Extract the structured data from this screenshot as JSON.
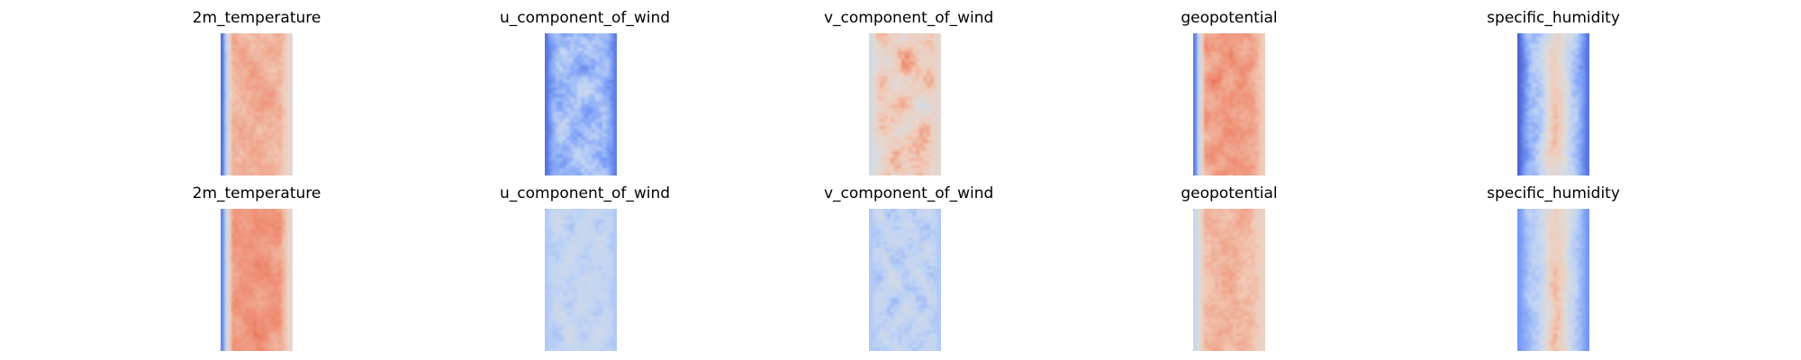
{
  "colormap": "coolwarm",
  "colormap_stops": [
    "#3b4cc0",
    "#7b9ff9",
    "#c0d4f5",
    "#dddcdc",
    "#f2cbb7",
    "#ee8468",
    "#b40426"
  ],
  "chart_data": [
    {
      "type": "heatmap",
      "title": "2m_temperature",
      "row": 1,
      "col": 1,
      "pattern": "warm-core",
      "base": 0.7,
      "amp": 0.09,
      "edge_left": 0.08,
      "edge_right": 0.55,
      "seed": 11
    },
    {
      "type": "heatmap",
      "title": "u_component_of_wind",
      "row": 1,
      "col": 2,
      "pattern": "cool-streaky",
      "base": 0.26,
      "amp": 0.2,
      "edge_left": 0.08,
      "edge_right": 0.1,
      "seed": 23
    },
    {
      "type": "heatmap",
      "title": "v_component_of_wind",
      "row": 1,
      "col": 3,
      "pattern": "warm-noisy",
      "base": 0.63,
      "amp": 0.22,
      "edge_left": 0.45,
      "edge_right": 0.55,
      "seed": 37
    },
    {
      "type": "heatmap",
      "title": "geopotential",
      "row": 1,
      "col": 4,
      "pattern": "warm-core",
      "base": 0.74,
      "amp": 0.1,
      "edge_left": 0.1,
      "edge_right": 0.65,
      "seed": 41
    },
    {
      "type": "heatmap",
      "title": "specific_humidity",
      "row": 1,
      "col": 5,
      "pattern": "cool-center-warm",
      "base": 0.22,
      "amp": 0.16,
      "edge_left": 0.05,
      "edge_right": 0.08,
      "seed": 53
    },
    {
      "type": "heatmap",
      "title": "2m_temperature",
      "row": 2,
      "col": 1,
      "pattern": "warm-core",
      "base": 0.76,
      "amp": 0.08,
      "edge_left": 0.12,
      "edge_right": 0.55,
      "seed": 67
    },
    {
      "type": "heatmap",
      "title": "u_component_of_wind",
      "row": 2,
      "col": 2,
      "pattern": "pale-cool",
      "base": 0.36,
      "amp": 0.13,
      "edge_left": 0.3,
      "edge_right": 0.3,
      "seed": 71
    },
    {
      "type": "heatmap",
      "title": "v_component_of_wind",
      "row": 2,
      "col": 3,
      "pattern": "pale-cool",
      "base": 0.35,
      "amp": 0.16,
      "edge_left": 0.3,
      "edge_right": 0.3,
      "seed": 83
    },
    {
      "type": "heatmap",
      "title": "geopotential",
      "row": 2,
      "col": 4,
      "pattern": "warm-core",
      "base": 0.68,
      "amp": 0.1,
      "edge_left": 0.38,
      "edge_right": 0.6,
      "seed": 97
    },
    {
      "type": "heatmap",
      "title": "specific_humidity",
      "row": 2,
      "col": 5,
      "pattern": "cool-center-warm",
      "base": 0.27,
      "amp": 0.12,
      "edge_left": 0.15,
      "edge_right": 0.15,
      "seed": 101
    }
  ]
}
